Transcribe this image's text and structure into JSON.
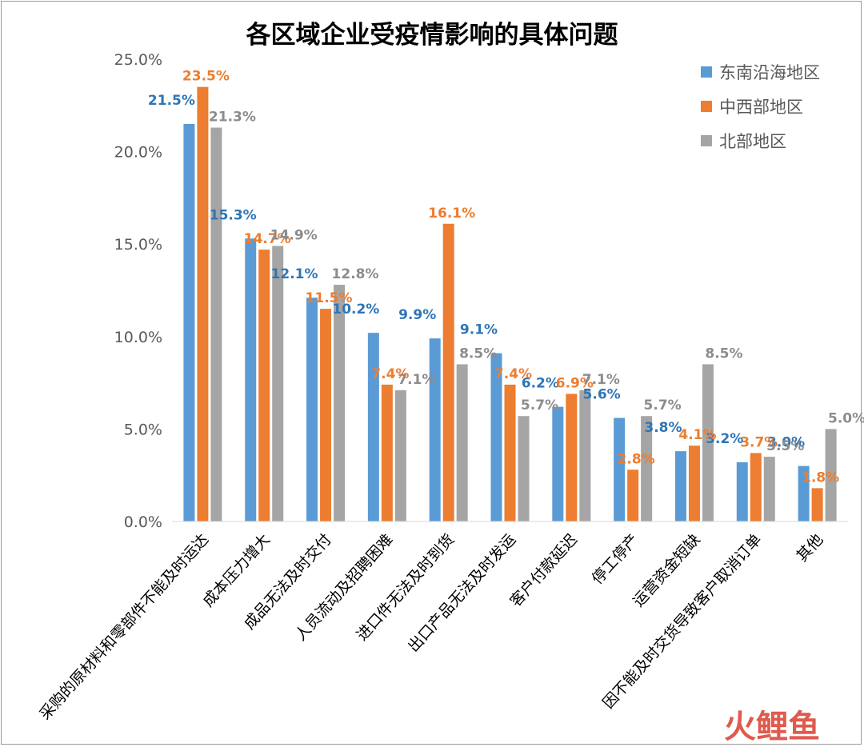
{
  "chart_data": {
    "type": "bar",
    "title": "各区域企业受疫情影响的具体问题",
    "categories": [
      "采购的原材料和零部件不能及时运达",
      "成本压力增大",
      "成品无法及时交付",
      "人员流动及招聘困难",
      "进口件无法及时到货",
      "出口产品无法及时发运",
      "客户付款延迟",
      "停工停产",
      "运营资金短缺",
      "因不能及时交货导致客户取消订单",
      "其他"
    ],
    "series": [
      {
        "name": "东南沿海地区",
        "color": "#5b9bd5",
        "label_color": "#2e75b6",
        "values": [
          21.5,
          15.3,
          12.1,
          10.2,
          9.9,
          9.1,
          6.2,
          5.6,
          3.8,
          3.2,
          3.0
        ]
      },
      {
        "name": "中西部地区",
        "color": "#ed7d31",
        "label_color": "#ed7d31",
        "values": [
          23.5,
          14.7,
          11.5,
          7.4,
          16.1,
          7.4,
          6.9,
          2.8,
          4.1,
          3.7,
          1.8
        ]
      },
      {
        "name": "北部地区",
        "color": "#a5a5a5",
        "label_color": "#8c8c8c",
        "values": [
          21.3,
          14.9,
          12.8,
          7.1,
          8.5,
          5.7,
          7.1,
          5.7,
          8.5,
          3.5,
          5.0
        ]
      }
    ],
    "ylim": [
      0,
      25
    ],
    "yticks": [
      "0.0%",
      "5.0%",
      "10.0%",
      "15.0%",
      "20.0%",
      "25.0%"
    ],
    "ytick_values": [
      0,
      5,
      10,
      15,
      20,
      25
    ],
    "data_labels": [
      [
        "21.5%",
        "15.3%",
        "12.1%",
        "10.2%",
        "9.9%",
        "9.1%",
        "6.2%",
        "5.6%",
        "3.8%",
        "3.2%",
        "3.0%"
      ],
      [
        "23.5%",
        "14.7%",
        "11.5%",
        "7.4%",
        "16.1%",
        "7.4%",
        "6.9%",
        "2.8%",
        "4.1%",
        "3.7%",
        "1.8%"
      ],
      [
        "21.3%",
        "14.9%",
        "12.8%",
        "7.1%",
        "8.5%",
        "5.7%",
        "7.1%",
        "5.7%",
        "8.5%",
        "3.5%",
        "5.0%"
      ]
    ],
    "grid": false,
    "legend": "top-right"
  },
  "watermark": {
    "text": "火鲤鱼",
    "color": "#e05a4e"
  }
}
